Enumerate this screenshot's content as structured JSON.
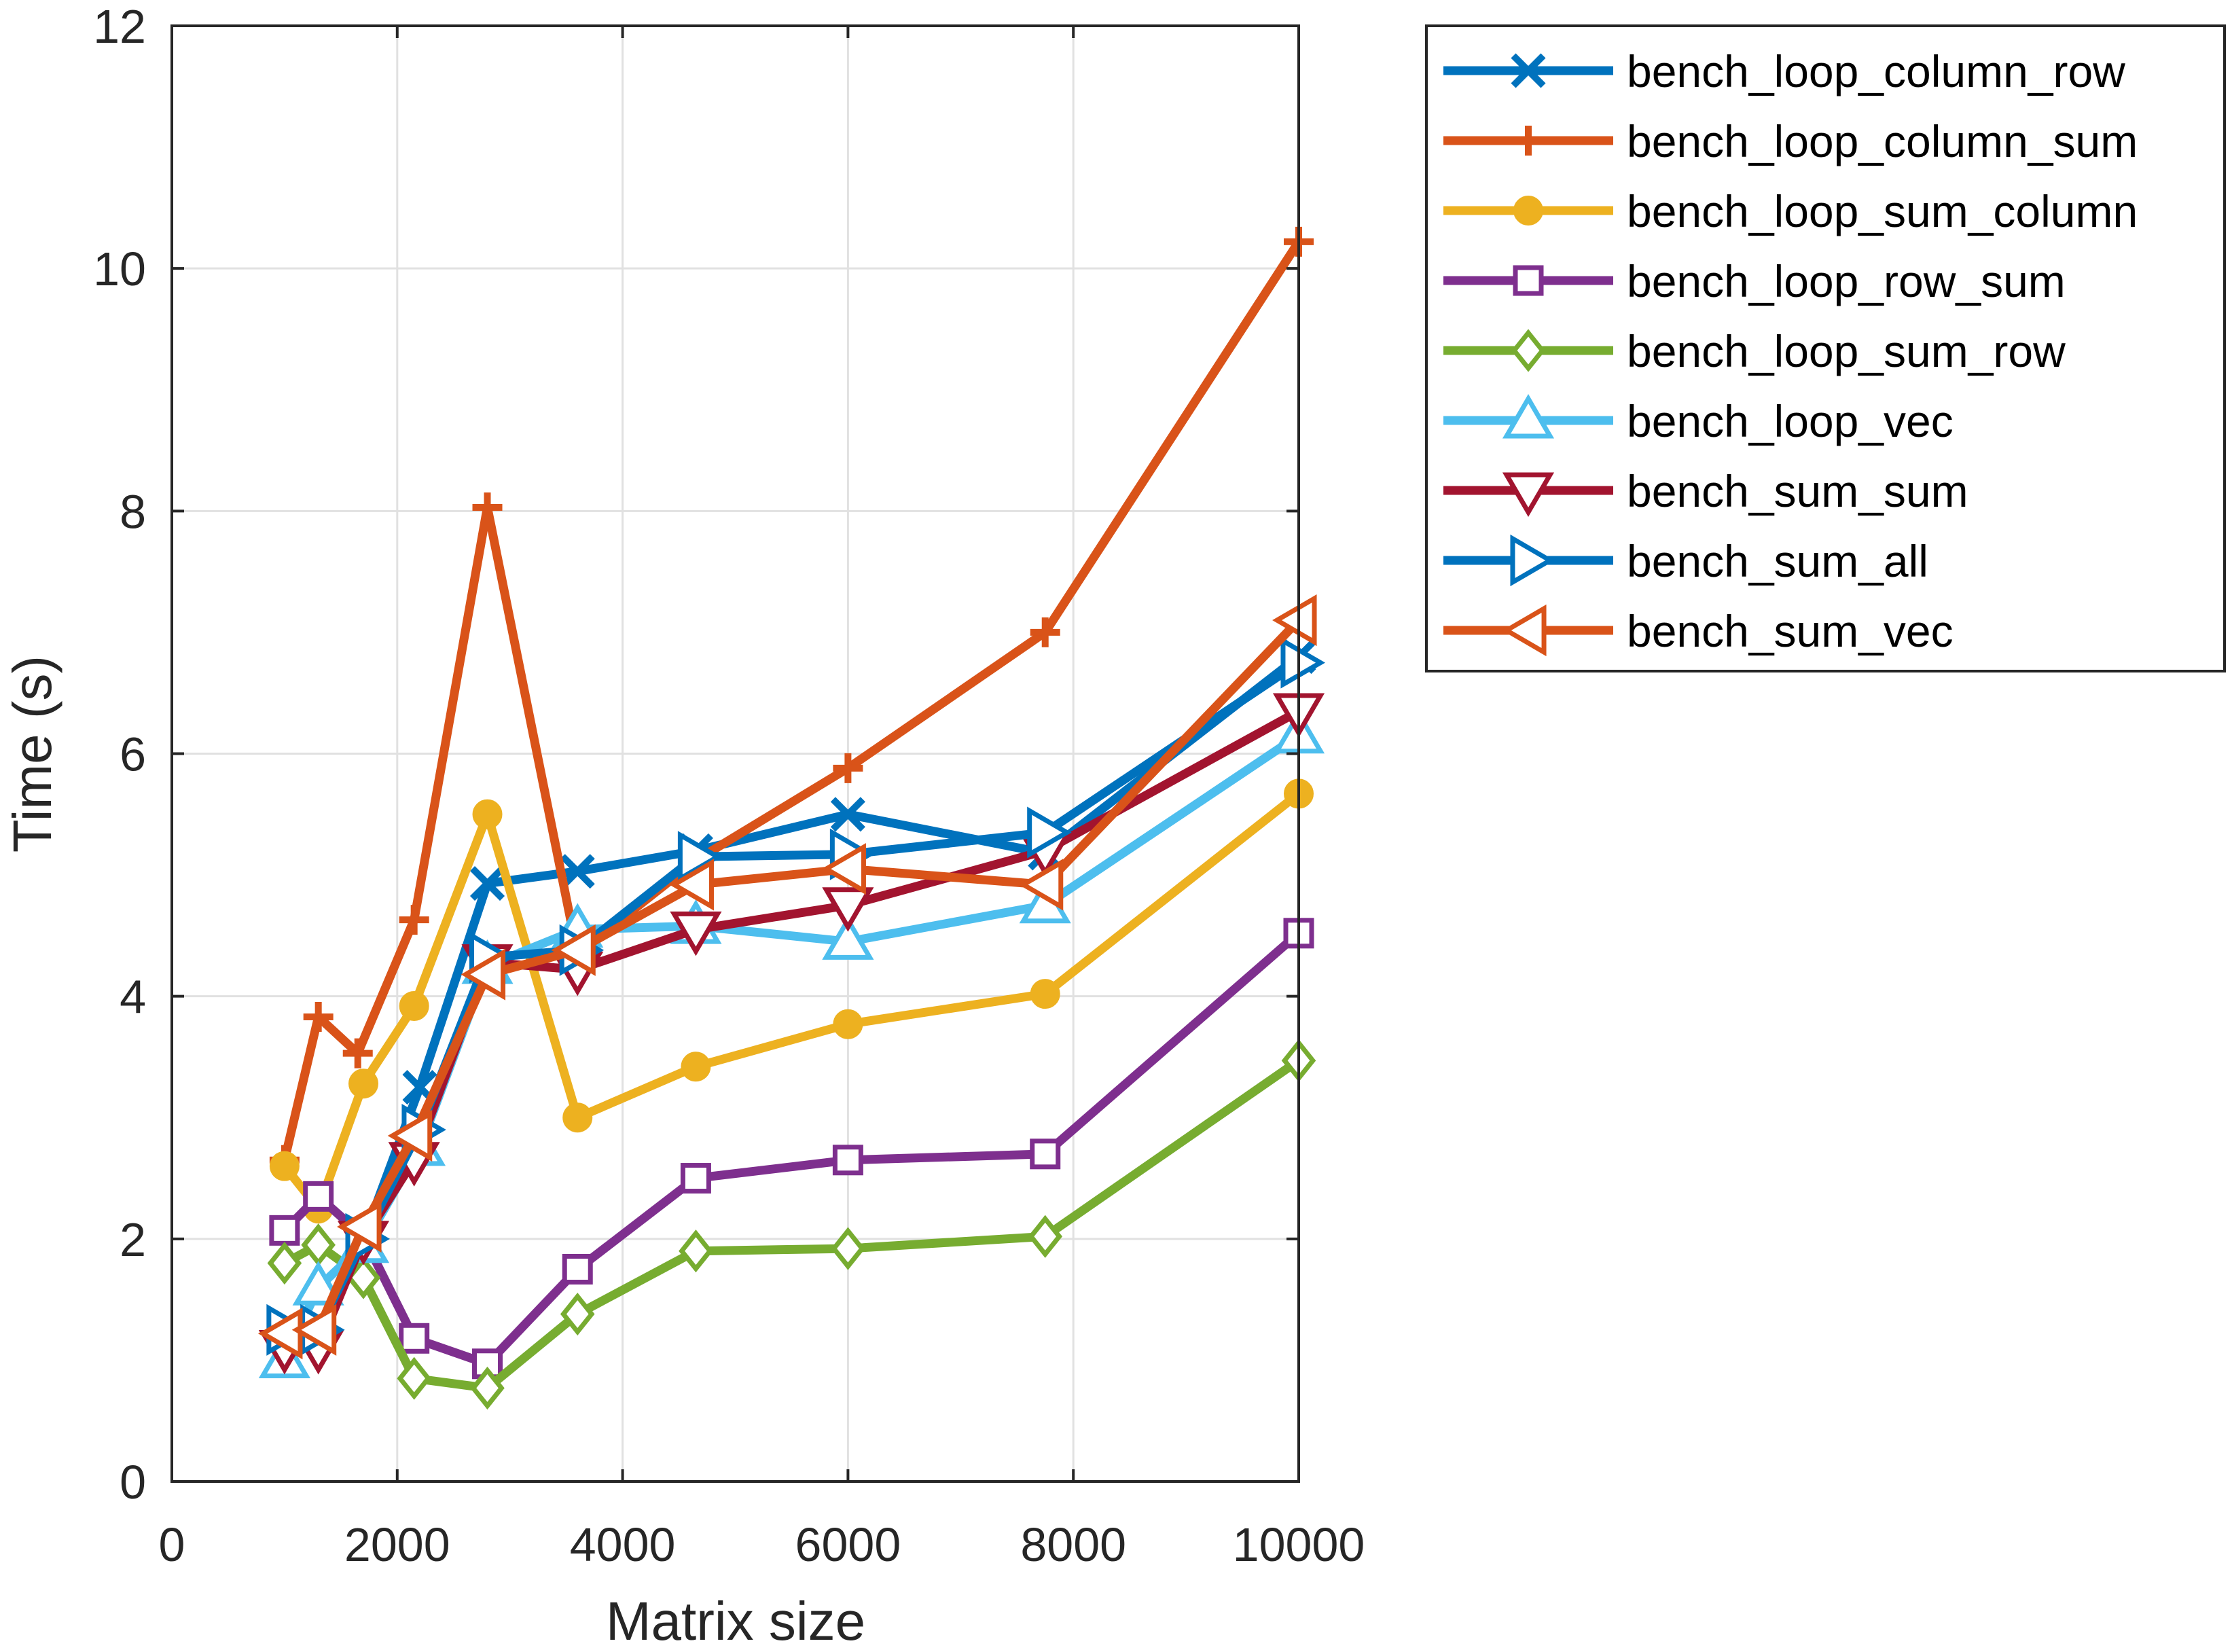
{
  "chart_data": {
    "type": "line",
    "xlabel": "Matrix size",
    "ylabel": "Time (s)",
    "xlim": [
      0,
      10000
    ],
    "ylim": [
      0,
      12
    ],
    "xticks": [
      "0",
      "2000",
      "4000",
      "6000",
      "8000",
      "10000"
    ],
    "yticks": [
      "0",
      "2",
      "4",
      "6",
      "8",
      "10",
      "12"
    ],
    "grid": true,
    "legend_position": "outside-top-right",
    "series": [
      {
        "name": "bench_loop_column_row",
        "color": "#0072BD",
        "marker": "x",
        "x": [
          1000,
          1300,
          1700,
          2200,
          2800,
          3600,
          4650,
          6000,
          7750,
          10000
        ],
        "y": [
          1.25,
          1.25,
          2.0,
          3.25,
          4.93,
          5.03,
          5.2,
          5.5,
          5.18,
          6.8
        ]
      },
      {
        "name": "bench_loop_column_sum",
        "color": "#D95319",
        "marker": "plus",
        "x": [
          1000,
          1300,
          1650,
          2150,
          2800,
          3600,
          4650,
          6000,
          7750,
          10000
        ],
        "y": [
          2.65,
          3.83,
          3.53,
          4.63,
          8.03,
          4.35,
          5.12,
          5.88,
          7.0,
          10.22
        ]
      },
      {
        "name": "bench_loop_sum_column",
        "color": "#EDB120",
        "marker": "circle",
        "x": [
          1000,
          1300,
          1700,
          2150,
          2800,
          3600,
          4650,
          6000,
          7750,
          10000
        ],
        "y": [
          2.6,
          2.25,
          3.28,
          3.92,
          5.5,
          3.0,
          3.42,
          3.77,
          4.02,
          5.67
        ]
      },
      {
        "name": "bench_loop_row_sum",
        "color": "#7E2F8E",
        "marker": "square",
        "x": [
          1000,
          1300,
          1700,
          2150,
          2800,
          3600,
          4650,
          6000,
          7750,
          10000
        ],
        "y": [
          2.07,
          2.35,
          2.02,
          1.18,
          0.97,
          1.75,
          2.5,
          2.65,
          2.7,
          4.52
        ]
      },
      {
        "name": "bench_loop_sum_row",
        "color": "#77AC30",
        "marker": "diamond",
        "x": [
          1000,
          1300,
          1700,
          2150,
          2800,
          3600,
          4650,
          6000,
          7750,
          10000
        ],
        "y": [
          1.8,
          1.95,
          1.68,
          0.85,
          0.77,
          1.38,
          1.9,
          1.92,
          2.02,
          3.47
        ]
      },
      {
        "name": "bench_loop_vec",
        "color": "#4DBEEE",
        "marker": "triangle-up",
        "x": [
          1000,
          1300,
          1700,
          2200,
          2800,
          3600,
          4650,
          6000,
          7750,
          10000
        ],
        "y": [
          1.0,
          1.6,
          1.95,
          2.75,
          4.25,
          4.55,
          4.58,
          4.45,
          4.75,
          6.15
        ]
      },
      {
        "name": "bench_sum_sum",
        "color": "#A2142F",
        "marker": "triangle-down",
        "x": [
          1000,
          1300,
          1700,
          2150,
          2800,
          3600,
          4650,
          6000,
          7750,
          10000
        ],
        "y": [
          1.1,
          1.1,
          2.0,
          2.65,
          4.28,
          4.22,
          4.55,
          4.75,
          5.2,
          6.35
        ]
      },
      {
        "name": "bench_sum_all",
        "color": "#0072BD",
        "marker": "triangle-right",
        "x": [
          1000,
          1300,
          1700,
          2200,
          2800,
          3600,
          4650,
          6000,
          7750,
          10000
        ],
        "y": [
          1.25,
          1.25,
          2.0,
          2.9,
          4.32,
          4.38,
          5.15,
          5.17,
          5.35,
          6.75
        ]
      },
      {
        "name": "bench_sum_vec",
        "color": "#D95319",
        "marker": "triangle-left",
        "x": [
          1000,
          1300,
          1700,
          2150,
          2800,
          3600,
          4650,
          6000,
          7750,
          10000
        ],
        "y": [
          1.22,
          1.25,
          2.1,
          2.85,
          4.18,
          4.38,
          4.92,
          5.05,
          4.92,
          7.1
        ]
      }
    ]
  }
}
